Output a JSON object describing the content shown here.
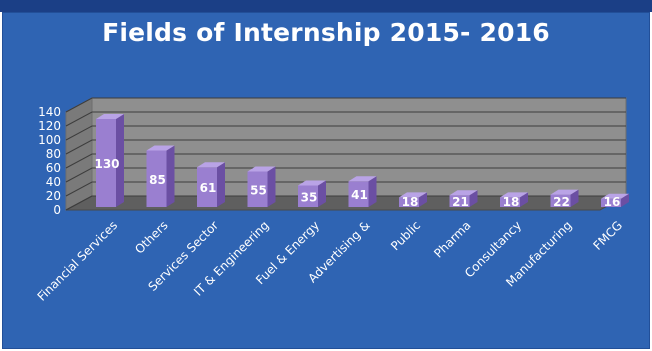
{
  "chart_data": {
    "type": "bar",
    "title": "Fields of Internship 2015- 2016",
    "categories": [
      "Financial Services",
      "Others",
      "Services Sector",
      "IT & Engineering",
      "Fuel & Energy",
      "Advertising &",
      "Public",
      "Pharma",
      "Consultancy",
      "Manufacturing",
      "FMCG"
    ],
    "values": [
      130,
      85,
      61,
      55,
      35,
      41,
      18,
      21,
      18,
      22,
      16
    ],
    "data_labels": [
      "130",
      "85",
      "61",
      "55",
      "35",
      "41",
      "18",
      "21",
      "18",
      "22",
      "16"
    ],
    "yticks": [
      0,
      20,
      40,
      60,
      80,
      100,
      120,
      140
    ],
    "ylim": [
      0,
      140
    ],
    "grid": true,
    "legend": "none",
    "colors": {
      "bar_front": "#9a7fd0",
      "bar_side": "#6b4fa3",
      "bar_top": "#b9a3e6",
      "background": "#2f64b3",
      "wall": "#8f8f8f",
      "floor": "#5f5f5f",
      "text": "#ffffff"
    }
  }
}
